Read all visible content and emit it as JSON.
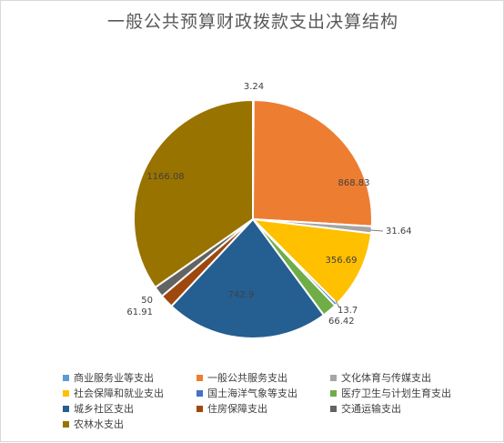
{
  "chart_data": {
    "type": "pie",
    "title": "一般公共预算财政拨款支出决算结构",
    "legend_position": "bottom",
    "slices": [
      {
        "name": "商业服务业等支出",
        "value": 3.24,
        "label": "3.24",
        "color": "#5b9bd5"
      },
      {
        "name": "一般公共服务支出",
        "value": 868.83,
        "label": "868.83",
        "color": "#ed7d31"
      },
      {
        "name": "文化体育与传媒支出",
        "value": 31.64,
        "label": "31.64",
        "color": "#a5a5a5"
      },
      {
        "name": "社会保障和就业支出",
        "value": 356.69,
        "label": "356.69",
        "color": "#ffc000"
      },
      {
        "name": "国土海洋气象等支出",
        "value": 13.7,
        "label": "13.7",
        "color": "#4472c4"
      },
      {
        "name": "医疗卫生与计划生育支出",
        "value": 66.42,
        "label": "66.42",
        "color": "#70ad47"
      },
      {
        "name": "城乡社区支出",
        "value": 742.9,
        "label": "742.9",
        "color": "#255e91"
      },
      {
        "name": "住房保障支出",
        "value": 61.91,
        "label": "61.91",
        "color": "#9e480e"
      },
      {
        "name": "交通运输支出",
        "value": 50,
        "label": "50",
        "color": "#636363"
      },
      {
        "name": "农林水支出",
        "value": 1166.08,
        "label": "1166.08",
        "color": "#997300"
      }
    ]
  }
}
